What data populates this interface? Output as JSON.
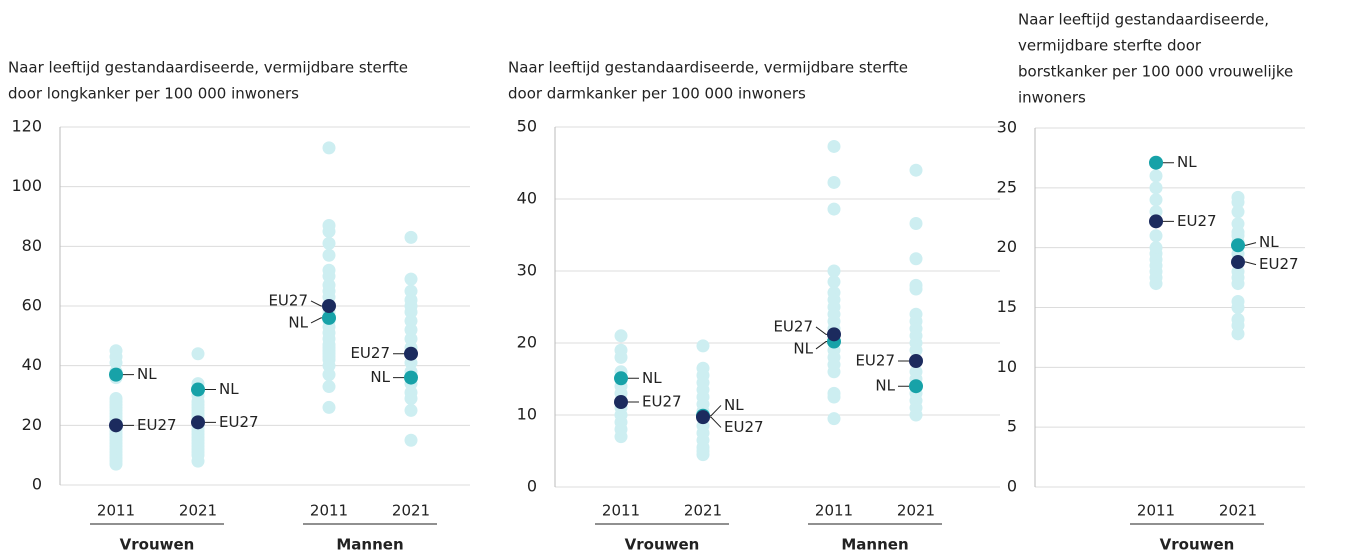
{
  "chart_data": [
    {
      "type": "strip",
      "title": [
        "Naar leeftijd gestandaardiseerde, vermijdbare sterfte",
        "door longkanker per 100 000 inwoners"
      ],
      "groups": [
        {
          "name": "Vrouwen",
          "categories": [
            "2011",
            "2021"
          ]
        },
        {
          "name": "Mannen",
          "categories": [
            "2011",
            "2021"
          ]
        }
      ],
      "ylim": [
        0,
        120
      ],
      "yticks": [
        0,
        20,
        40,
        60,
        80,
        100,
        120
      ],
      "grid": true,
      "countries": {
        "color": "#cdeef1",
        "values": [
          [
            45,
            43,
            41,
            38,
            36,
            29,
            28,
            27,
            26,
            25,
            24,
            23,
            22,
            21,
            19,
            18,
            17,
            16,
            15,
            14,
            13,
            12,
            11,
            10,
            9,
            8,
            7
          ],
          [
            44,
            34,
            30,
            28,
            27,
            26,
            25,
            24,
            23,
            22,
            20,
            19,
            18,
            17,
            16,
            15,
            14,
            13,
            12,
            11,
            10,
            8
          ],
          [
            113,
            87,
            85,
            81,
            77,
            72,
            70,
            67,
            65,
            63,
            58,
            55,
            53,
            51,
            49,
            47,
            46,
            45,
            44,
            43,
            42,
            40,
            37,
            33,
            26
          ],
          [
            83,
            69,
            65,
            62,
            60,
            58,
            55,
            52,
            49,
            46,
            41,
            38,
            34,
            31,
            29,
            25,
            15
          ]
        ]
      },
      "series": [
        {
          "name": "NL",
          "color": "#17a2a8",
          "values": [
            37,
            32,
            56,
            36
          ]
        },
        {
          "name": "EU27",
          "color": "#1c2b5e",
          "values": [
            20,
            21,
            60,
            44
          ]
        }
      ]
    },
    {
      "type": "strip",
      "title": [
        "Naar leeftijd gestandaardiseerde, vermijdbare sterfte",
        "door darmkanker per 100 000 inwoners"
      ],
      "groups": [
        {
          "name": "Vrouwen",
          "categories": [
            "2011",
            "2021"
          ]
        },
        {
          "name": "Mannen",
          "categories": [
            "2011",
            "2021"
          ]
        }
      ],
      "ylim": [
        0,
        50
      ],
      "yticks": [
        0,
        10,
        20,
        30,
        40,
        50
      ],
      "grid": true,
      "countries": {
        "color": "#cdeef1",
        "values": [
          [
            21,
            19,
            18,
            16,
            14,
            13,
            12,
            11,
            10,
            9,
            8,
            7
          ],
          [
            19.6,
            16.5,
            15.5,
            14.5,
            13.5,
            12.5,
            11.5,
            10.5,
            8.5,
            7.5,
            6.5,
            5.5,
            5,
            4.5
          ],
          [
            47.3,
            42.3,
            38.6,
            30,
            28.5,
            27,
            26,
            25,
            24,
            23,
            22,
            19,
            18,
            17,
            16,
            13,
            12.5,
            9.5
          ],
          [
            44,
            36.6,
            31.7,
            28,
            27.5,
            24,
            23,
            22,
            21,
            20,
            19,
            16,
            15,
            13,
            12,
            11,
            10
          ]
        ]
      },
      "series": [
        {
          "name": "NL",
          "color": "#17a2a8",
          "values": [
            15.1,
            9.9,
            20.2,
            14
          ]
        },
        {
          "name": "EU27",
          "color": "#1c2b5e",
          "values": [
            11.8,
            9.7,
            21.2,
            17.5
          ]
        }
      ]
    },
    {
      "type": "strip",
      "title": [
        "Naar leeftijd gestandaardiseerde,",
        "vermijdbare sterfte door",
        "borstkanker per 100 000 vrouwelijke",
        "inwoners"
      ],
      "groups": [
        {
          "name": "Vrouwen",
          "categories": [
            "2011",
            "2021"
          ]
        }
      ],
      "ylim": [
        0,
        30
      ],
      "yticks": [
        0,
        5,
        10,
        15,
        20,
        25,
        30
      ],
      "grid": true,
      "countries": {
        "color": "#cdeef1",
        "values": [
          [
            26,
            25,
            24,
            23,
            21,
            20,
            19.5,
            19,
            18.5,
            18,
            17.5,
            17
          ],
          [
            24.2,
            23.8,
            23,
            22,
            21.3,
            21,
            20.5,
            19.5,
            18,
            17.5,
            17,
            15.5,
            15,
            14,
            13.5,
            12.8
          ]
        ]
      },
      "series": [
        {
          "name": "NL",
          "color": "#17a2a8",
          "values": [
            27.1,
            20.2
          ]
        },
        {
          "name": "EU27",
          "color": "#1c2b5e",
          "values": [
            22.2,
            18.8
          ]
        }
      ]
    }
  ]
}
